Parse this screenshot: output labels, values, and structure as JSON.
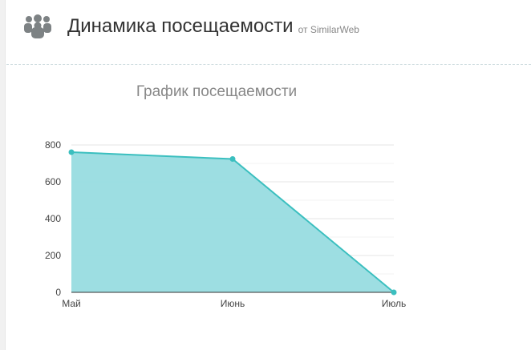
{
  "header": {
    "title": "Динамика посещаемости",
    "source": "от SimilarWeb",
    "icon": "users-icon"
  },
  "chart_data": {
    "type": "area",
    "title": "График посещаемости",
    "categories": [
      "Май",
      "Июнь",
      "Июль"
    ],
    "values": [
      761,
      724,
      0
    ],
    "ylim": [
      0,
      800
    ],
    "yticks": [
      0,
      200,
      400,
      600,
      800
    ],
    "grid": true,
    "color": "#3bbfbf",
    "fill": "#98dce0"
  }
}
